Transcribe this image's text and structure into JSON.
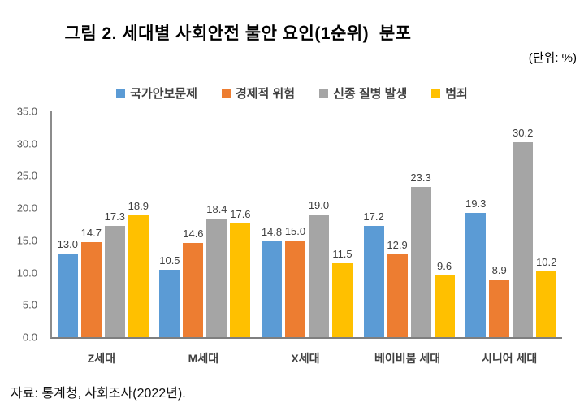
{
  "title": "그림 2. 세대별 사회안전 불안 요인(1순위)  분포",
  "unit_label": "(단위: %)",
  "source": "자료: 통계청, 사회조사(2022년).",
  "colors": {
    "series_blue": "#5B9BD5",
    "series_orange": "#ED7D31",
    "series_gray": "#A5A5A5",
    "series_yellow": "#FFC000",
    "axis_line": "#7f7f7f",
    "tick_text": "#595959",
    "data_label_text": "#404040"
  },
  "chart_data": {
    "type": "bar",
    "title": "그림 2. 세대별 사회안전 불안 요인(1순위)  분포",
    "unit": "(단위: %)",
    "categories": [
      "Z세대",
      "M세대",
      "X세대",
      "베이비붐 세대",
      "시니어 세대"
    ],
    "series": [
      {
        "name": "국가안보문제",
        "color": "#5B9BD5",
        "values": [
          13.0,
          10.5,
          14.8,
          17.2,
          19.3
        ]
      },
      {
        "name": "경제적 위험",
        "color": "#ED7D31",
        "values": [
          14.7,
          14.6,
          15.0,
          12.9,
          8.9
        ]
      },
      {
        "name": "신종 질병 발생",
        "color": "#A5A5A5",
        "values": [
          17.3,
          18.4,
          19.0,
          23.3,
          30.2
        ]
      },
      {
        "name": "범죄",
        "color": "#FFC000",
        "values": [
          18.9,
          17.6,
          11.5,
          9.6,
          10.2
        ]
      }
    ],
    "ylim": [
      0,
      35
    ],
    "ytick_step": 5,
    "yticks": [
      "0.0",
      "5.0",
      "10.0",
      "15.0",
      "20.0",
      "25.0",
      "30.0",
      "35.0"
    ],
    "grid": false,
    "legend_position": "top",
    "data_labels": true,
    "data_label_decimals": 1
  }
}
